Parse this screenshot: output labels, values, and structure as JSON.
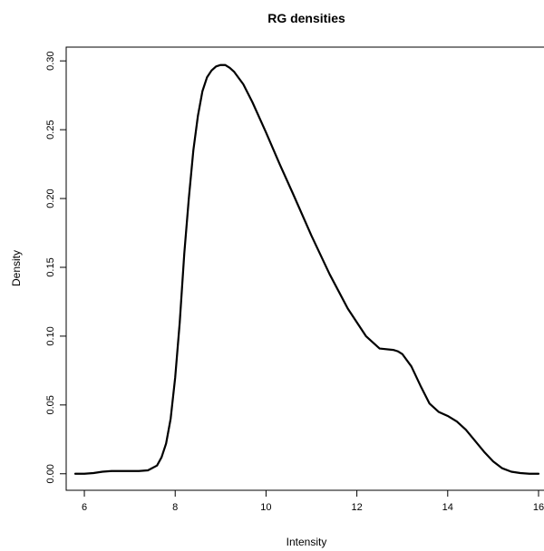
{
  "chart_data": {
    "type": "line",
    "title": "RG densities",
    "xlabel": "Intensity",
    "ylabel": "Density",
    "xlim": [
      5.6,
      16.2
    ],
    "ylim": [
      -0.012,
      0.31
    ],
    "xticks": [
      6,
      8,
      10,
      12,
      14,
      16
    ],
    "yticks": [
      0.0,
      0.05,
      0.1,
      0.15,
      0.2,
      0.25,
      0.3
    ],
    "ytick_labels": [
      "0.00",
      "0.05",
      "0.10",
      "0.15",
      "0.20",
      "0.25",
      "0.30"
    ],
    "grid": false,
    "legend": "none",
    "line_color": "#000000",
    "series": [
      {
        "x": [
          5.8,
          6.0,
          6.2,
          6.4,
          6.6,
          6.8,
          7.0,
          7.2,
          7.4,
          7.6,
          7.7,
          7.8,
          7.9,
          8.0,
          8.1,
          8.2,
          8.3,
          8.4,
          8.5,
          8.6,
          8.7,
          8.8,
          8.9,
          9.0,
          9.1,
          9.2,
          9.3,
          9.5,
          9.7,
          10.0,
          10.3,
          10.6,
          11.0,
          11.4,
          11.8,
          12.2,
          12.5,
          12.8,
          12.9,
          13.0,
          13.2,
          13.4,
          13.6,
          13.8,
          14.0,
          14.2,
          14.4,
          14.6,
          14.8,
          15.0,
          15.2,
          15.4,
          15.6,
          15.8,
          16.0
        ],
        "y": [
          0.0,
          0.0,
          0.0005,
          0.0015,
          0.002,
          0.002,
          0.002,
          0.002,
          0.0025,
          0.006,
          0.012,
          0.022,
          0.04,
          0.07,
          0.11,
          0.16,
          0.2,
          0.235,
          0.26,
          0.278,
          0.288,
          0.293,
          0.296,
          0.297,
          0.297,
          0.295,
          0.292,
          0.283,
          0.27,
          0.248,
          0.225,
          0.203,
          0.173,
          0.145,
          0.12,
          0.1,
          0.091,
          0.09,
          0.089,
          0.087,
          0.078,
          0.064,
          0.051,
          0.045,
          0.042,
          0.038,
          0.032,
          0.024,
          0.016,
          0.009,
          0.004,
          0.0015,
          0.0005,
          0.0,
          0.0
        ]
      }
    ]
  }
}
